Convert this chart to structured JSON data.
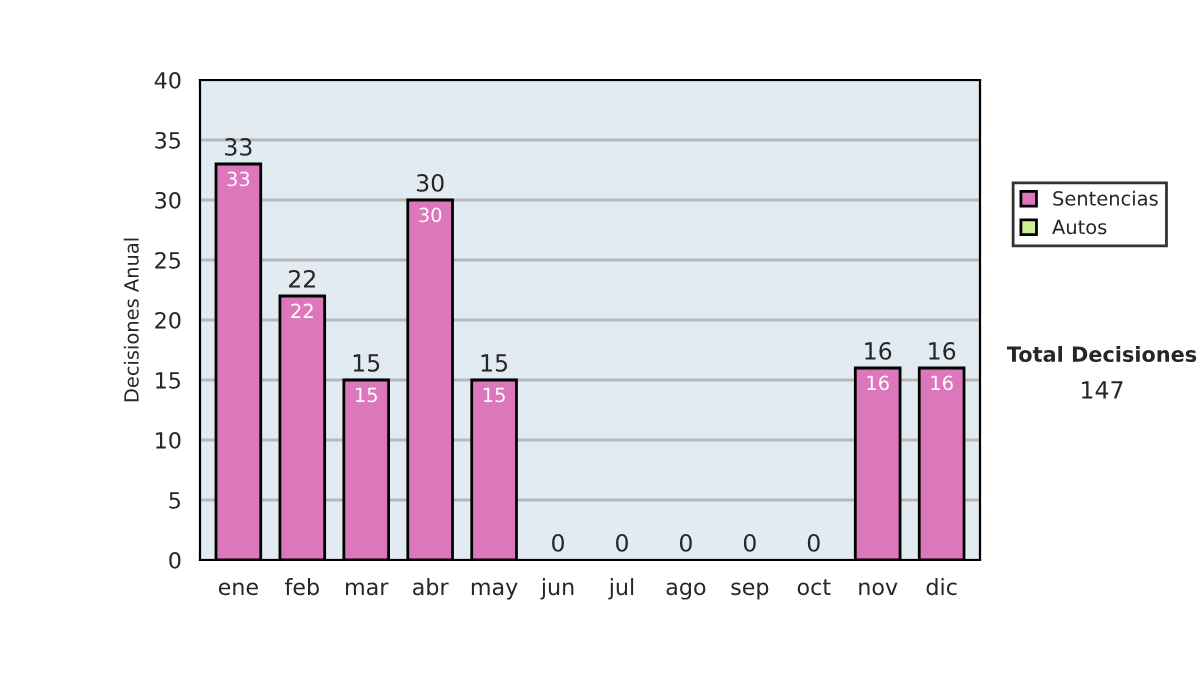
{
  "chart_data": {
    "type": "bar",
    "ylabel": "Decisiones Anual",
    "categories": [
      "ene",
      "feb",
      "mar",
      "abr",
      "may",
      "jun",
      "jul",
      "ago",
      "sep",
      "oct",
      "nov",
      "dic"
    ],
    "stacked": true,
    "series": [
      {
        "name": "Sentencias",
        "color": "#dd77bb",
        "values": [
          33,
          22,
          15,
          30,
          15,
          0,
          0,
          0,
          0,
          0,
          16,
          16
        ],
        "value_labels": [
          "33",
          "22",
          "15",
          "30",
          "15",
          null,
          null,
          null,
          null,
          null,
          "16",
          "16"
        ]
      },
      {
        "name": "Autos",
        "color": "#ccee99",
        "values": [
          0,
          0,
          0,
          0,
          0,
          0,
          0,
          0,
          0,
          0,
          0,
          0
        ]
      }
    ],
    "totals": [
      "33",
      "22",
      "15",
      "30",
      "15",
      "0",
      "0",
      "0",
      "0",
      "0",
      "16",
      "16"
    ],
    "ylim": [
      0,
      40
    ],
    "yticks": [
      0,
      5,
      10,
      15,
      20,
      25,
      30,
      35,
      40
    ],
    "grid": "y",
    "legend": "right",
    "annotations": [
      "Total Decisiones",
      "147"
    ]
  }
}
